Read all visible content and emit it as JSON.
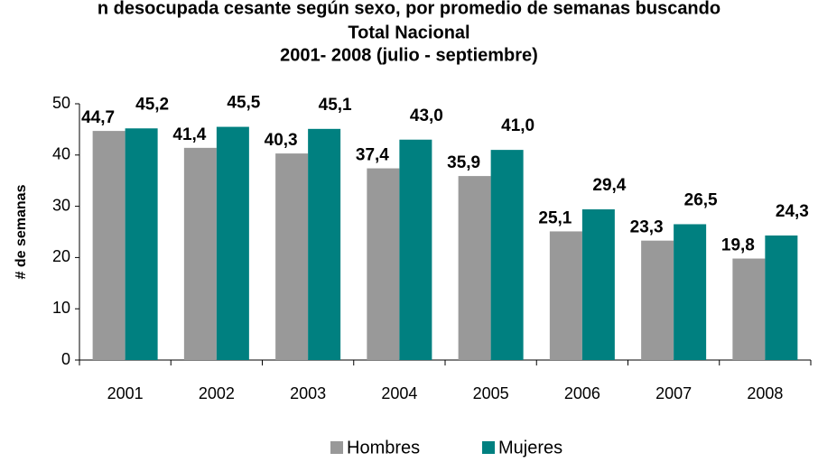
{
  "chart_data": {
    "type": "bar",
    "title": [
      "n desocupada cesante según sexo, por promedio de semanas buscando",
      "Total Nacional",
      "2001- 2008 (julio - septiembre)"
    ],
    "y_label": "# de semanas",
    "categories": [
      "2001",
      "2002",
      "2003",
      "2004",
      "2005",
      "2006",
      "2007",
      "2008"
    ],
    "series": [
      {
        "name": "Hombres",
        "color": "#999999",
        "values": [
          44.7,
          41.4,
          40.3,
          37.4,
          35.9,
          25.1,
          23.3,
          19.8
        ],
        "value_labels": [
          "44,7",
          "41,4",
          "40,3",
          "37,4",
          "35,9",
          "25,1",
          "23,3",
          "19,8"
        ]
      },
      {
        "name": "Mujeres",
        "color": "#008080",
        "values": [
          45.2,
          45.5,
          45.1,
          43.0,
          41.0,
          29.4,
          26.5,
          24.3
        ],
        "value_labels": [
          "45,2",
          "45,5",
          "45,1",
          "43,0",
          "41,0",
          "29,4",
          "26,5",
          "24,3"
        ]
      }
    ],
    "ylim": [
      0,
      50
    ],
    "yticks": [
      0,
      10,
      20,
      30,
      40,
      50
    ],
    "grid": false,
    "legend": "bottom"
  }
}
